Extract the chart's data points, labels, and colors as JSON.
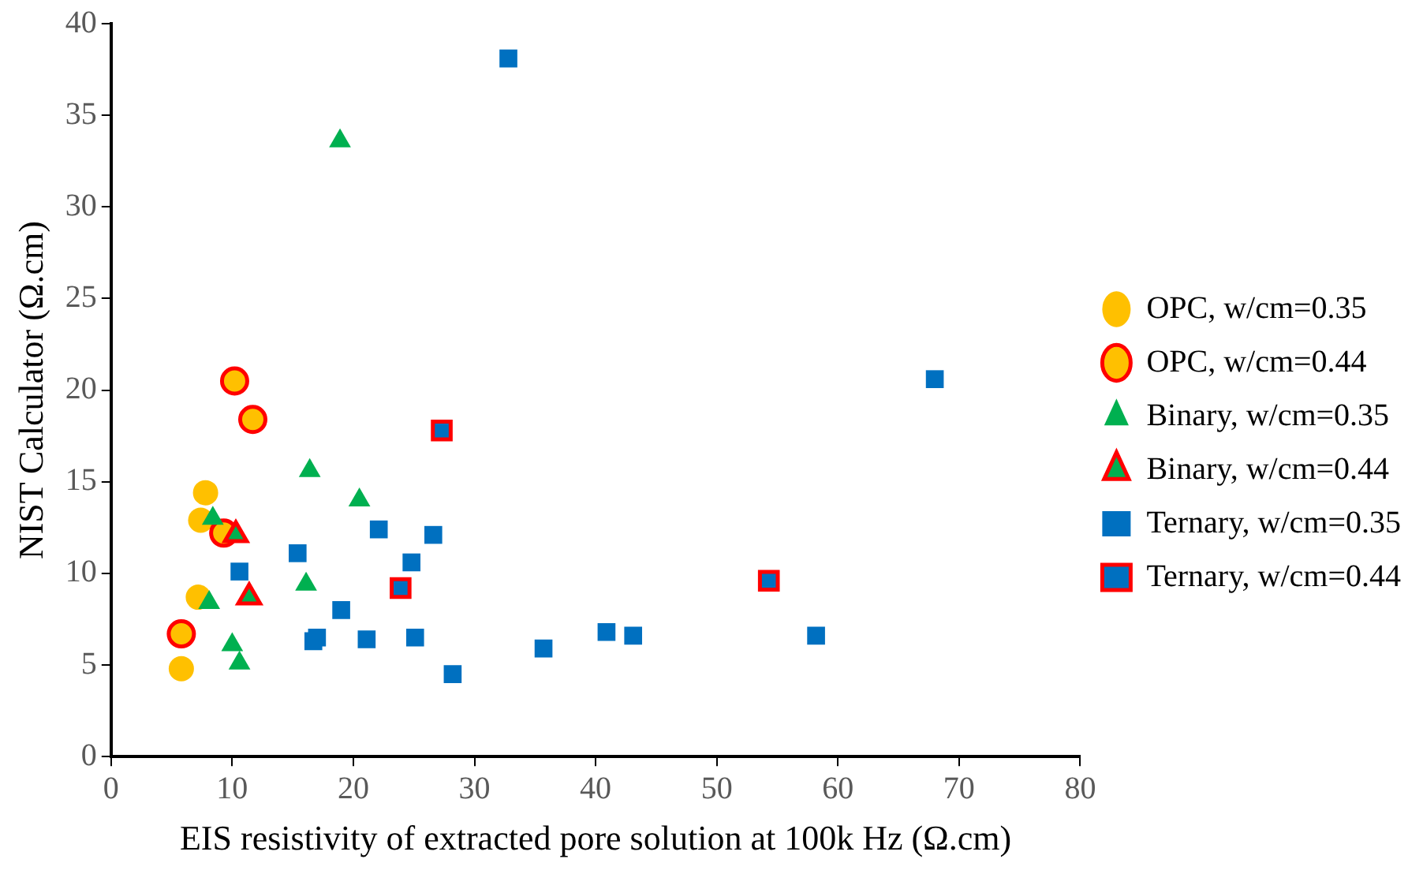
{
  "chart_data": {
    "type": "scatter",
    "xlabel": "EIS resistivity of extracted pore solution at 100k Hz (Ω.cm)",
    "ylabel": "NIST Calculator (Ω.cm)",
    "xlim": [
      0,
      80
    ],
    "xticks": [
      0,
      10,
      20,
      30,
      40,
      50,
      60,
      70,
      80
    ],
    "ylim": [
      0,
      40
    ],
    "yticks": [
      0,
      5,
      10,
      15,
      20,
      25,
      30,
      35,
      40
    ],
    "grid": false,
    "legend": "right",
    "series": [
      {
        "name": "OPC, w/cm=0.35",
        "color": "#ffc000",
        "marker": "circle",
        "x": [
          5.8,
          7.2,
          7.4,
          7.8
        ],
        "values": [
          4.8,
          8.7,
          12.9,
          14.4
        ]
      },
      {
        "name": "OPC, w/cm=0.44",
        "color": "#ffc000",
        "marker": "circle",
        "x": [
          10.2,
          11.7,
          9.3,
          5.8
        ],
        "values": [
          20.5,
          18.4,
          12.2,
          6.7
        ]
      },
      {
        "name": "Binary, w/cm=0.35",
        "color": "#00b050",
        "marker": "triangle",
        "x": [
          18.9,
          16.4,
          20.5,
          8.4,
          8.1,
          10.0,
          10.6,
          16.1
        ],
        "values": [
          33.6,
          15.6,
          14.0,
          13.0,
          8.4,
          6.1,
          5.1,
          9.4
        ]
      },
      {
        "name": "Binary, w/cm=0.44",
        "color": "#00b050",
        "marker": "triangle",
        "x": [
          10.3,
          11.4
        ],
        "values": [
          12.1,
          8.7
        ]
      },
      {
        "name": "Ternary, w/cm=0.35",
        "color": "#0070c0",
        "marker": "square",
        "x": [
          22.1,
          26.6,
          15.4,
          24.8,
          19.0,
          16.7,
          17.0,
          21.1,
          25.1,
          28.2,
          35.7,
          40.9,
          43.1,
          10.6,
          32.8,
          68.0,
          58.2
        ],
        "values": [
          12.4,
          12.1,
          11.1,
          10.6,
          8.0,
          6.3,
          6.5,
          6.4,
          6.5,
          4.5,
          5.9,
          6.8,
          6.6,
          10.1,
          38.1,
          20.6,
          6.6
        ]
      },
      {
        "name": "Ternary, w/cm=0.44",
        "color": "#0070c0",
        "marker": "square",
        "x": [
          27.3,
          23.9,
          54.3
        ],
        "values": [
          17.8,
          9.2,
          9.6
        ]
      }
    ]
  }
}
